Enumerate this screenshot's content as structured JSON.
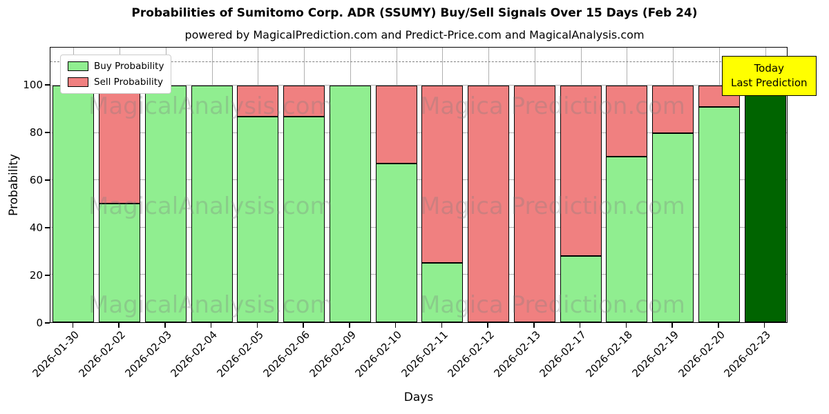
{
  "title": "Probabilities of Sumitomo Corp. ADR (SSUMY) Buy/Sell Signals Over 15 Days (Feb 24)",
  "subtitle": "powered by MagicalPrediction.com and Predict-Price.com and MagicalAnalysis.com",
  "legend": {
    "buy_label": "Buy Probability",
    "sell_label": "Sell Probability"
  },
  "annotation": {
    "line1": "Today",
    "line2": "Last Prediction",
    "background": "#ffff00"
  },
  "axes": {
    "x_label": "Days",
    "y_label": "Probability",
    "y_ticks": [
      0,
      20,
      40,
      60,
      80,
      100
    ]
  },
  "watermark": {
    "left": "MagicalAnalysis.com",
    "right": "Magica Prediction.com"
  },
  "colors": {
    "buy": "#90EE90",
    "sell": "#F08080",
    "today_bar": "#006400",
    "grid": "#b0b0b0",
    "dashed_line": "#7f7f7f",
    "annotation_bg": "#ffff00"
  },
  "chart_data": {
    "type": "bar",
    "stacked": true,
    "title": "Probabilities of Sumitomo Corp. ADR (SSUMY) Buy/Sell Signals Over 15 Days (Feb 24)",
    "xlabel": "Days",
    "ylabel": "Probability",
    "categories": [
      "2026-01-30",
      "2026-02-02",
      "2026-02-03",
      "2026-02-04",
      "2026-02-05",
      "2026-02-06",
      "2026-02-09",
      "2026-02-10",
      "2026-02-11",
      "2026-02-12",
      "2026-02-13",
      "2026-02-17",
      "2026-02-18",
      "2026-02-19",
      "2026-02-20",
      "2026-02-23"
    ],
    "series": [
      {
        "name": "Buy Probability",
        "color": "#90EE90",
        "values": [
          100,
          50,
          100,
          100,
          87,
          87,
          100,
          67,
          25,
          0,
          0,
          28,
          70,
          80,
          91,
          100
        ]
      },
      {
        "name": "Sell Probability",
        "color": "#F08080",
        "values": [
          0,
          50,
          0,
          0,
          13,
          13,
          0,
          33,
          75,
          100,
          100,
          72,
          30,
          20,
          9,
          0
        ]
      }
    ],
    "last_bar_color": "#006400",
    "ylim": [
      0,
      116
    ],
    "dashed_line_y": 110,
    "grid": true,
    "legend_position": "upper left"
  }
}
